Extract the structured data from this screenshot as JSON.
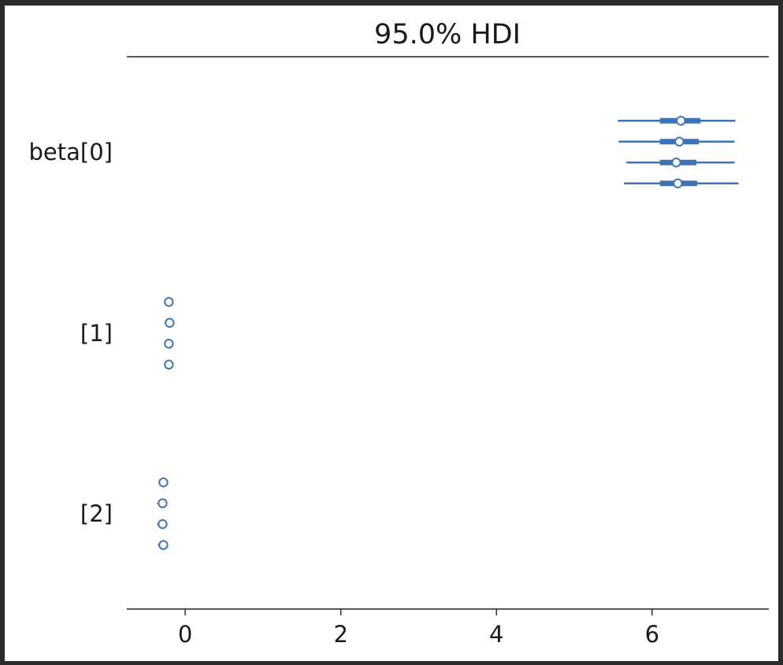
{
  "chart_data": {
    "type": "forest",
    "title": "95.0% HDI",
    "xlabel": "",
    "ylabel": "",
    "xlim": [
      -0.75,
      7.5
    ],
    "xticks": [
      0,
      2,
      4,
      6
    ],
    "xtick_labels": [
      "0",
      "2",
      "4",
      "6"
    ],
    "grid": false,
    "series_color": "#3d74b4",
    "variables": [
      {
        "label": "beta[0]",
        "chains": [
          {
            "mean": 6.37,
            "hdi_low": 5.56,
            "hdi_high": 7.07,
            "iqr_low": 6.1,
            "iqr_high": 6.62
          },
          {
            "mean": 6.35,
            "hdi_low": 5.57,
            "hdi_high": 7.06,
            "iqr_low": 6.1,
            "iqr_high": 6.6
          },
          {
            "mean": 6.31,
            "hdi_low": 5.67,
            "hdi_high": 7.06,
            "iqr_low": 6.1,
            "iqr_high": 6.57
          },
          {
            "mean": 6.33,
            "hdi_low": 5.64,
            "hdi_high": 7.11,
            "iqr_low": 6.1,
            "iqr_high": 6.58
          }
        ]
      },
      {
        "label": "[1]",
        "chains": [
          {
            "mean": -0.21,
            "hdi_low": -0.23,
            "hdi_high": -0.19,
            "iqr_low": -0.22,
            "iqr_high": -0.2
          },
          {
            "mean": -0.2,
            "hdi_low": -0.22,
            "hdi_high": -0.18,
            "iqr_low": -0.21,
            "iqr_high": -0.19
          },
          {
            "mean": -0.21,
            "hdi_low": -0.23,
            "hdi_high": -0.19,
            "iqr_low": -0.22,
            "iqr_high": -0.2
          },
          {
            "mean": -0.21,
            "hdi_low": -0.23,
            "hdi_high": -0.19,
            "iqr_low": -0.22,
            "iqr_high": -0.2
          }
        ]
      },
      {
        "label": "[2]",
        "chains": [
          {
            "mean": -0.28,
            "hdi_low": -0.34,
            "hdi_high": -0.24,
            "iqr_low": -0.3,
            "iqr_high": -0.26
          },
          {
            "mean": -0.29,
            "hdi_low": -0.36,
            "hdi_high": -0.25,
            "iqr_low": -0.31,
            "iqr_high": -0.27
          },
          {
            "mean": -0.29,
            "hdi_low": -0.36,
            "hdi_high": -0.25,
            "iqr_low": -0.31,
            "iqr_high": -0.27
          },
          {
            "mean": -0.28,
            "hdi_low": -0.35,
            "hdi_high": -0.24,
            "iqr_low": -0.3,
            "iqr_high": -0.26
          }
        ]
      }
    ]
  }
}
